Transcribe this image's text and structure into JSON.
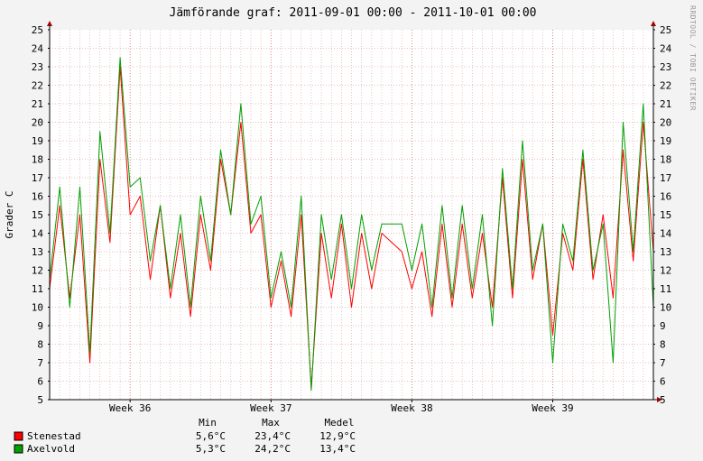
{
  "chart_data": {
    "type": "line",
    "title": "Jämförande graf: 2011-09-01 00:00 - 2011-10-01 00:00",
    "ylabel": "Grader C",
    "side_text": "RRDTOOL / TOBI OETIKER",
    "ylim": [
      5,
      25
    ],
    "yticks": [
      5,
      6,
      7,
      8,
      9,
      10,
      11,
      12,
      13,
      14,
      15,
      16,
      17,
      18,
      19,
      20,
      21,
      22,
      23,
      24,
      25
    ],
    "x_start": "2011-09-01 00:00",
    "x_end": "2011-10-01 00:00",
    "week_ticks": [
      {
        "label": "Week 36",
        "x": "2011-09-05 00:00"
      },
      {
        "label": "Week 37",
        "x": "2011-09-12 00:00"
      },
      {
        "label": "Week 38",
        "x": "2011-09-19 00:00"
      },
      {
        "label": "Week 39",
        "x": "2011-09-26 00:00"
      }
    ],
    "stats_headers": [
      "Min",
      "Max",
      "Medel"
    ],
    "series": [
      {
        "name": "Stenestad",
        "color": "#ff0000",
        "min": "5,6°C",
        "max": "23,4°C",
        "mean": "12,9°C",
        "x": [
          "2011-09-01 00:00",
          "2011-09-01 12:00",
          "2011-09-02 00:00",
          "2011-09-02 12:00",
          "2011-09-03 00:00",
          "2011-09-03 12:00",
          "2011-09-04 00:00",
          "2011-09-04 12:00",
          "2011-09-05 00:00",
          "2011-09-05 12:00",
          "2011-09-06 00:00",
          "2011-09-06 12:00",
          "2011-09-07 00:00",
          "2011-09-07 12:00",
          "2011-09-08 00:00",
          "2011-09-08 12:00",
          "2011-09-09 00:00",
          "2011-09-09 12:00",
          "2011-09-10 00:00",
          "2011-09-10 12:00",
          "2011-09-11 00:00",
          "2011-09-11 12:00",
          "2011-09-12 00:00",
          "2011-09-12 12:00",
          "2011-09-13 00:00",
          "2011-09-13 12:00",
          "2011-09-14 00:00",
          "2011-09-14 12:00",
          "2011-09-15 00:00",
          "2011-09-15 12:00",
          "2011-09-16 00:00",
          "2011-09-16 12:00",
          "2011-09-17 00:00",
          "2011-09-17 12:00",
          "2011-09-18 00:00",
          "2011-09-18 12:00",
          "2011-09-19 00:00",
          "2011-09-19 12:00",
          "2011-09-20 00:00",
          "2011-09-20 12:00",
          "2011-09-21 00:00",
          "2011-09-21 12:00",
          "2011-09-22 00:00",
          "2011-09-22 12:00",
          "2011-09-23 00:00",
          "2011-09-23 12:00",
          "2011-09-24 00:00",
          "2011-09-24 12:00",
          "2011-09-25 00:00",
          "2011-09-25 12:00",
          "2011-09-26 00:00",
          "2011-09-26 12:00",
          "2011-09-27 00:00",
          "2011-09-27 12:00",
          "2011-09-28 00:00",
          "2011-09-28 12:00",
          "2011-09-29 00:00",
          "2011-09-29 12:00",
          "2011-09-30 00:00",
          "2011-09-30 12:00",
          "2011-10-01 00:00"
        ],
        "values": [
          11.0,
          15.5,
          10.5,
          15.0,
          7.0,
          18.0,
          13.5,
          23.0,
          15.0,
          16.0,
          11.5,
          15.5,
          10.5,
          14.0,
          9.5,
          15.0,
          12.0,
          18.0,
          15.0,
          20.0,
          14.0,
          15.0,
          10.0,
          12.5,
          9.5,
          15.0,
          5.6,
          14.0,
          10.5,
          14.5,
          10.0,
          14.0,
          11.0,
          14.0,
          13.5,
          13.0,
          11.0,
          13.0,
          9.5,
          14.5,
          10.0,
          14.5,
          10.5,
          14.0,
          10.0,
          17.0,
          10.5,
          18.0,
          11.5,
          14.5,
          8.5,
          14.0,
          12.0,
          18.0,
          11.5,
          15.0,
          10.5,
          18.5,
          12.5,
          20.0,
          13.0
        ]
      },
      {
        "name": "Axelvold",
        "color": "#00a000",
        "min": "5,3°C",
        "max": "24,2°C",
        "mean": "13,4°C",
        "x": [
          "2011-09-01 00:00",
          "2011-09-01 12:00",
          "2011-09-02 00:00",
          "2011-09-02 12:00",
          "2011-09-03 00:00",
          "2011-09-03 12:00",
          "2011-09-04 00:00",
          "2011-09-04 12:00",
          "2011-09-05 00:00",
          "2011-09-05 12:00",
          "2011-09-06 00:00",
          "2011-09-06 12:00",
          "2011-09-07 00:00",
          "2011-09-07 12:00",
          "2011-09-08 00:00",
          "2011-09-08 12:00",
          "2011-09-09 00:00",
          "2011-09-09 12:00",
          "2011-09-10 00:00",
          "2011-09-10 12:00",
          "2011-09-11 00:00",
          "2011-09-11 12:00",
          "2011-09-12 00:00",
          "2011-09-12 12:00",
          "2011-09-13 00:00",
          "2011-09-13 12:00",
          "2011-09-14 00:00",
          "2011-09-14 12:00",
          "2011-09-15 00:00",
          "2011-09-15 12:00",
          "2011-09-16 00:00",
          "2011-09-16 12:00",
          "2011-09-17 00:00",
          "2011-09-17 12:00",
          "2011-09-18 00:00",
          "2011-09-18 12:00",
          "2011-09-19 00:00",
          "2011-09-19 12:00",
          "2011-09-20 00:00",
          "2011-09-20 12:00",
          "2011-09-21 00:00",
          "2011-09-21 12:00",
          "2011-09-22 00:00",
          "2011-09-22 12:00",
          "2011-09-23 00:00",
          "2011-09-23 12:00",
          "2011-09-24 00:00",
          "2011-09-24 12:00",
          "2011-09-25 00:00",
          "2011-09-25 12:00",
          "2011-09-26 00:00",
          "2011-09-26 12:00",
          "2011-09-27 00:00",
          "2011-09-27 12:00",
          "2011-09-28 00:00",
          "2011-09-28 12:00",
          "2011-09-29 00:00",
          "2011-09-29 12:00",
          "2011-09-30 00:00",
          "2011-09-30 12:00",
          "2011-10-01 00:00"
        ],
        "values": [
          11.5,
          16.5,
          10.0,
          16.5,
          7.5,
          19.5,
          14.0,
          23.5,
          16.5,
          17.0,
          12.5,
          15.5,
          11.0,
          15.0,
          10.0,
          16.0,
          12.5,
          18.5,
          15.0,
          21.0,
          14.5,
          16.0,
          10.5,
          13.0,
          10.0,
          16.0,
          5.5,
          15.0,
          11.5,
          15.0,
          11.0,
          15.0,
          12.0,
          14.5,
          14.5,
          14.5,
          12.0,
          14.5,
          10.0,
          15.5,
          10.5,
          15.5,
          11.0,
          15.0,
          9.0,
          17.5,
          11.0,
          19.0,
          12.0,
          14.5,
          7.0,
          14.5,
          12.5,
          18.5,
          12.0,
          14.5,
          7.0,
          20.0,
          13.0,
          21.0,
          10.0
        ]
      }
    ]
  }
}
